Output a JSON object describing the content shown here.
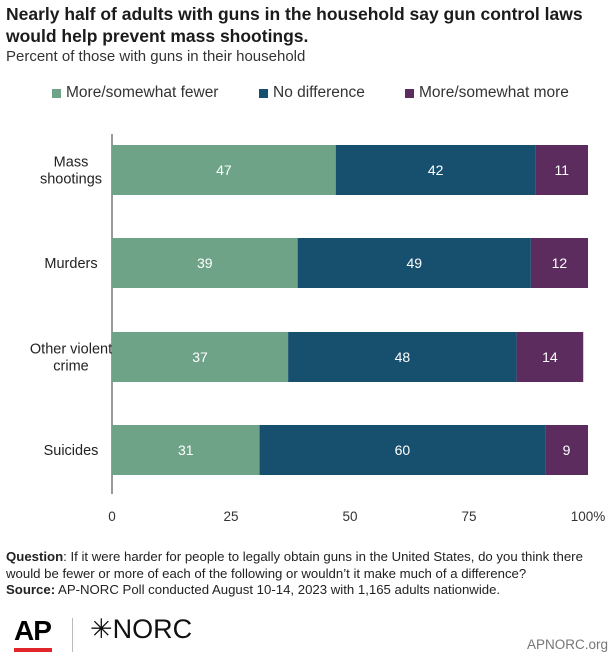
{
  "chart_data": {
    "type": "bar",
    "orientation": "horizontal",
    "stacked": true,
    "title": "Nearly half of adults with guns in the household say gun control laws would help prevent mass shootings.",
    "subtitle": "Percent of those with guns in their household",
    "categories": [
      {
        "lines": [
          "Mass",
          "shootings"
        ]
      },
      {
        "lines": [
          "Murders"
        ]
      },
      {
        "lines": [
          "Other violent",
          "crime"
        ]
      },
      {
        "lines": [
          "Suicides"
        ]
      }
    ],
    "series": [
      {
        "name": "More/somewhat fewer",
        "color": "#6fa387",
        "values": [
          47,
          39,
          37,
          31
        ]
      },
      {
        "name": "No difference",
        "color": "#17506e",
        "values": [
          42,
          49,
          48,
          60
        ]
      },
      {
        "name": "More/somewhat more",
        "color": "#5c2c5e",
        "values": [
          11,
          12,
          14,
          9
        ]
      }
    ],
    "xlim": [
      0,
      100
    ],
    "xticks": [
      "0",
      "25",
      "50",
      "75",
      "100%"
    ],
    "xtick_values": [
      0,
      25,
      50,
      75,
      100
    ],
    "legend_position": "top",
    "grid": false
  },
  "footer": {
    "question_label": "Question",
    "question_text": ": If it were harder for people to legally obtain guns in the United States, do you think there would be fewer or more of each of the following or wouldn’t it make much of a difference?",
    "source_label": "Source:",
    "source_text": " AP-NORC Poll conducted August 10-14, 2023 with 1,165 adults nationwide."
  },
  "branding": {
    "ap_logo": "AP",
    "norc_logo": "✳NORC",
    "site": "APNORC.org"
  }
}
